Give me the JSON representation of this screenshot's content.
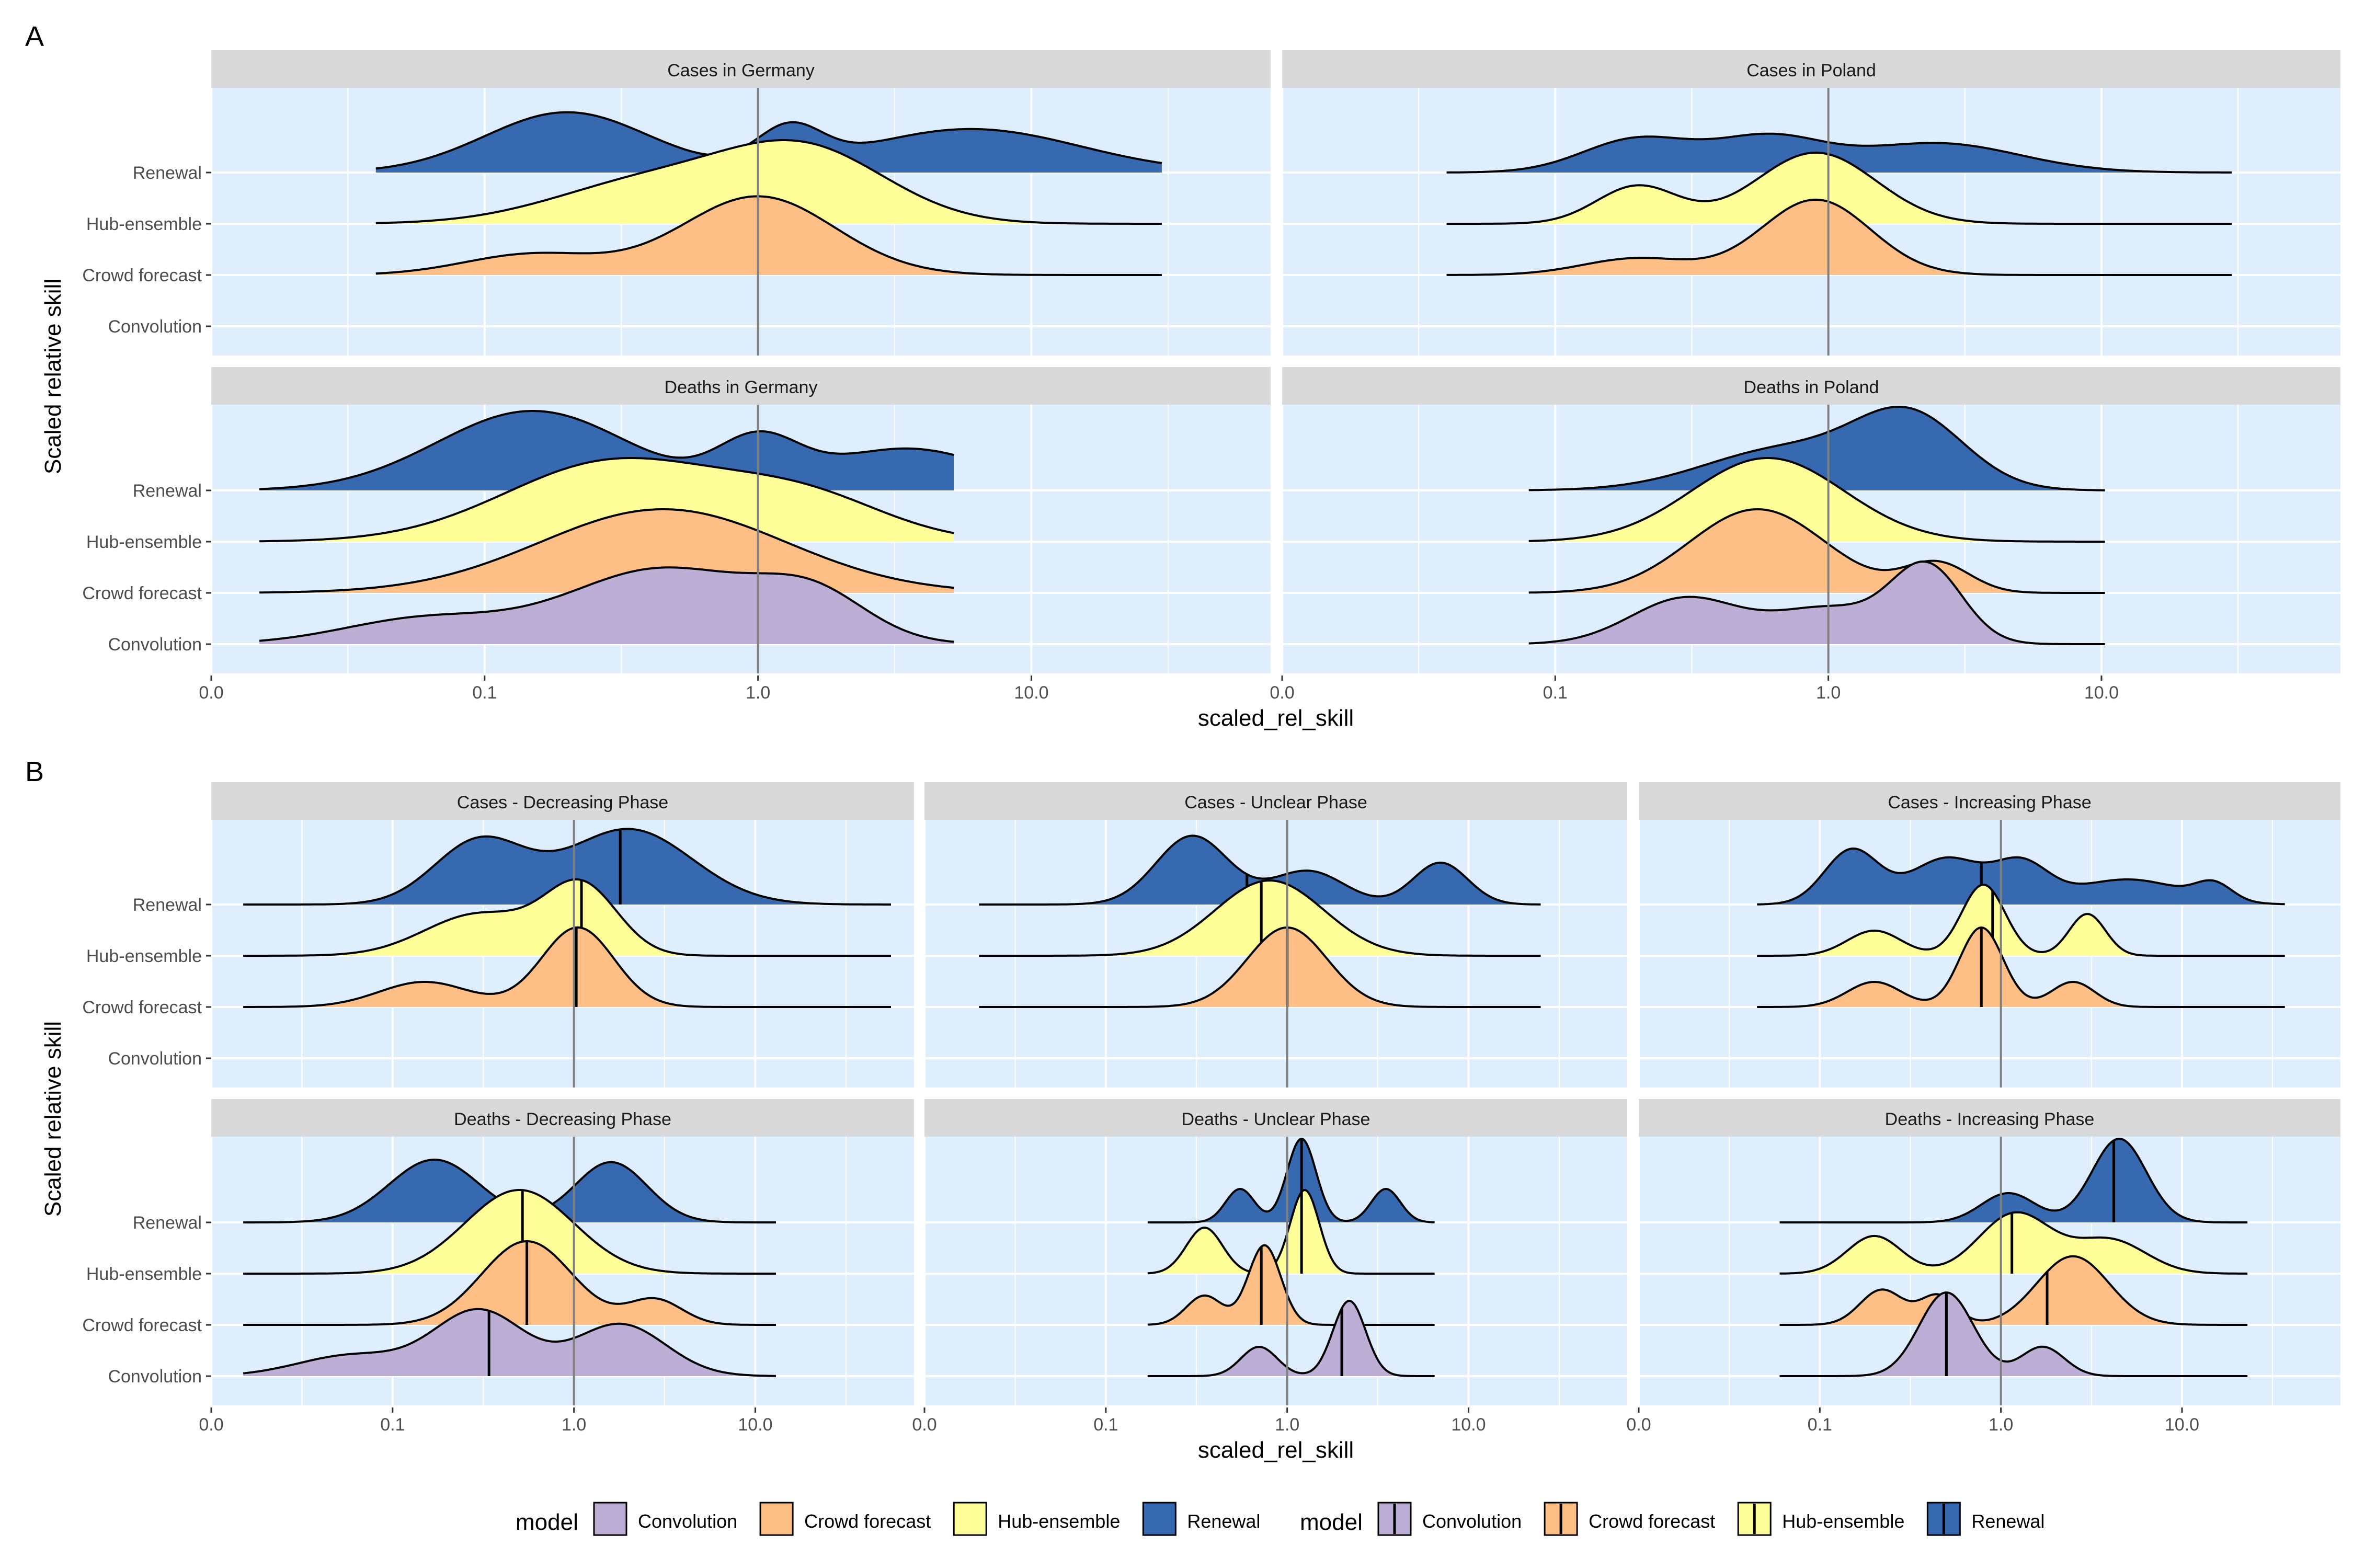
{
  "figure": {
    "legend": {
      "title": "model",
      "entries": [
        {
          "label": "Convolution",
          "color": "#bcaed4"
        },
        {
          "label": "Crowd forecast",
          "color": "#fdbf85"
        },
        {
          "label": "Hub-ensemble",
          "color": "#ffff99"
        },
        {
          "label": "Renewal",
          "color": "#3769b0"
        }
      ]
    }
  },
  "chart_data": [
    {
      "type": "density-ridgeline",
      "tag": "A",
      "ylabel": "Scaled relative skill",
      "xlabel": "scaled_rel_skill",
      "x_scale": "log10",
      "x_ticks": [
        "0.0",
        "0.1",
        "1.0",
        "10.0"
      ],
      "categories": [
        "Renewal",
        "Hub-ensemble",
        "Crowd forecast",
        "Convolution"
      ],
      "reference_line": 1.0,
      "panels": [
        {
          "title": "Cases in Germany",
          "range": [
            0.04,
            30
          ],
          "series": [
            {
              "name": "Renewal",
              "peaks": [
                [
                  0.2,
                  0.72,
                  0.3
                ],
                [
                  1.3,
                  0.45,
                  0.12
                ],
                [
                  6,
                  0.52,
                  0.4
                ]
              ]
            },
            {
              "name": "Hub-ensemble",
              "peaks": [
                [
                  0.4,
                  0.5,
                  0.35
                ],
                [
                  1.5,
                  0.85,
                  0.3
                ]
              ]
            },
            {
              "name": "Crowd forecast",
              "peaks": [
                [
                  0.15,
                  0.25,
                  0.25
                ],
                [
                  1.0,
                  0.94,
                  0.28
                ]
              ]
            }
          ]
        },
        {
          "title": "Cases in Poland",
          "range": [
            0.04,
            30
          ],
          "series": [
            {
              "name": "Renewal",
              "peaks": [
                [
                  0.2,
                  0.4,
                  0.2
                ],
                [
                  0.6,
                  0.4,
                  0.2
                ],
                [
                  2.5,
                  0.35,
                  0.3
                ]
              ]
            },
            {
              "name": "Hub-ensemble",
              "peaks": [
                [
                  0.2,
                  0.45,
                  0.15
                ],
                [
                  0.9,
                  0.85,
                  0.22
                ]
              ]
            },
            {
              "name": "Crowd forecast",
              "peaks": [
                [
                  0.2,
                  0.2,
                  0.2
                ],
                [
                  0.9,
                  0.9,
                  0.2
                ]
              ]
            }
          ]
        },
        {
          "title": "Deaths in Germany",
          "range": [
            0.015,
            5.2
          ],
          "series": [
            {
              "name": "Renewal",
              "peaks": [
                [
                  0.15,
                  0.95,
                  0.35
                ],
                [
                  1.0,
                  0.55,
                  0.15
                ],
                [
                  3.5,
                  0.5,
                  0.3
                ]
              ]
            },
            {
              "name": "Hub-ensemble",
              "peaks": [
                [
                  0.3,
                  1.0,
                  0.4
                ],
                [
                  1.5,
                  0.5,
                  0.3
                ]
              ]
            },
            {
              "name": "Crowd forecast",
              "peaks": [
                [
                  0.45,
                  1.0,
                  0.45
                ]
              ]
            },
            {
              "name": "Convolution",
              "peaks": [
                [
                  0.06,
                  0.3,
                  0.3
                ],
                [
                  0.45,
                  0.9,
                  0.35
                ],
                [
                  1.6,
                  0.5,
                  0.2
                ]
              ]
            }
          ]
        },
        {
          "title": "Deaths in Poland",
          "range": [
            0.08,
            10.3
          ],
          "series": [
            {
              "name": "Renewal",
              "peaks": [
                [
                  0.7,
                  0.6,
                  0.3
                ],
                [
                  2,
                  1.0,
                  0.2
                ]
              ]
            },
            {
              "name": "Hub-ensemble",
              "peaks": [
                [
                  0.6,
                  1.0,
                  0.28
                ]
              ]
            },
            {
              "name": "Crowd forecast",
              "peaks": [
                [
                  0.55,
                  1.0,
                  0.25
                ],
                [
                  2.5,
                  0.35,
                  0.12
                ]
              ]
            },
            {
              "name": "Convolution",
              "peaks": [
                [
                  0.3,
                  0.55,
                  0.2
                ],
                [
                  1.0,
                  0.42,
                  0.2
                ],
                [
                  2.3,
                  0.9,
                  0.13
                ]
              ]
            }
          ]
        }
      ]
    },
    {
      "type": "density-ridgeline",
      "tag": "B",
      "ylabel": "Scaled relative skill",
      "xlabel": "scaled_rel_skill",
      "x_scale": "log10",
      "x_ticks": [
        "0.0",
        "0.1",
        "1.0",
        "10.0"
      ],
      "categories": [
        "Renewal",
        "Hub-ensemble",
        "Crowd forecast",
        "Convolution"
      ],
      "reference_line": 1.0,
      "panels": [
        {
          "title": "Cases - Decreasing Phase",
          "range": [
            0.015,
            56
          ],
          "series": [
            {
              "name": "Renewal",
              "peaks": [
                [
                  0.3,
                  0.75,
                  0.25
                ],
                [
                  2,
                  0.9,
                  0.35
                ]
              ],
              "median": 1.8
            },
            {
              "name": "Hub-ensemble",
              "peaks": [
                [
                  0.3,
                  0.5,
                  0.3
                ],
                [
                  1.1,
                  0.82,
                  0.2
                ]
              ],
              "median": 1.1
            },
            {
              "name": "Crowd forecast",
              "peaks": [
                [
                  0.15,
                  0.3,
                  0.25
                ],
                [
                  1.05,
                  0.95,
                  0.2
                ]
              ],
              "median": 1.03
            }
          ]
        },
        {
          "title": "Cases - Unclear Phase",
          "range": [
            0.02,
            25
          ],
          "series": [
            {
              "name": "Renewal",
              "peaks": [
                [
                  0.3,
                  0.82,
                  0.2
                ],
                [
                  1.3,
                  0.4,
                  0.2
                ],
                [
                  7,
                  0.5,
                  0.15
                ]
              ],
              "median": 0.6
            },
            {
              "name": "Hub-ensemble",
              "peaks": [
                [
                  0.8,
                  0.9,
                  0.3
                ]
              ],
              "median": 0.72
            },
            {
              "name": "Crowd forecast",
              "peaks": [
                [
                  1.0,
                  0.95,
                  0.22
                ]
              ],
              "median": 1.0
            }
          ]
        },
        {
          "title": "Cases - Increasing Phase",
          "range": [
            0.045,
            37
          ],
          "series": [
            {
              "name": "Renewal",
              "peaks": [
                [
                  0.15,
                  0.65,
                  0.15
                ],
                [
                  0.5,
                  0.55,
                  0.2
                ],
                [
                  1.3,
                  0.45,
                  0.15
                ],
                [
                  5,
                  0.3,
                  0.3
                ],
                [
                  15,
                  0.2,
                  0.1
                ]
              ],
              "median": 0.78
            },
            {
              "name": "Hub-ensemble",
              "peaks": [
                [
                  0.2,
                  0.3,
                  0.15
                ],
                [
                  0.8,
                  0.85,
                  0.12
                ],
                [
                  3,
                  0.5,
                  0.1
                ]
              ],
              "median": 0.9
            },
            {
              "name": "Crowd forecast",
              "peaks": [
                [
                  0.2,
                  0.3,
                  0.15
                ],
                [
                  0.78,
                  0.95,
                  0.12
                ],
                [
                  2.5,
                  0.3,
                  0.12
                ]
              ],
              "median": 0.78
            }
          ]
        },
        {
          "title": "Deaths - Decreasing Phase",
          "range": [
            0.015,
            13
          ],
          "series": [
            {
              "name": "Renewal",
              "peaks": [
                [
                  0.17,
                  0.75,
                  0.25
                ],
                [
                  1.6,
                  0.72,
                  0.2
                ]
              ],
              "median": 0.52
            },
            {
              "name": "Hub-ensemble",
              "peaks": [
                [
                  0.5,
                  1.0,
                  0.3
                ]
              ],
              "median": 0.52
            },
            {
              "name": "Crowd forecast",
              "peaks": [
                [
                  0.55,
                  1.0,
                  0.25
                ],
                [
                  2.8,
                  0.3,
                  0.15
                ]
              ],
              "median": 0.55
            },
            {
              "name": "Convolution",
              "peaks": [
                [
                  0.06,
                  0.25,
                  0.3
                ],
                [
                  0.3,
                  0.78,
                  0.25
                ],
                [
                  1.8,
                  0.62,
                  0.25
                ]
              ],
              "median": 0.34
            }
          ]
        },
        {
          "title": "Deaths - Unclear Phase",
          "range": [
            0.17,
            6.5
          ],
          "series": [
            {
              "name": "Renewal",
              "peaks": [
                [
                  0.55,
                  0.4,
                  0.08
                ],
                [
                  1.2,
                  1.0,
                  0.08
                ],
                [
                  3.5,
                  0.4,
                  0.08
                ]
              ],
              "median": 1.2
            },
            {
              "name": "Hub-ensemble",
              "peaks": [
                [
                  0.35,
                  0.55,
                  0.1
                ],
                [
                  1.25,
                  1.0,
                  0.08
                ]
              ],
              "median": 1.2
            },
            {
              "name": "Crowd forecast",
              "peaks": [
                [
                  0.35,
                  0.35,
                  0.1
                ],
                [
                  0.75,
                  0.95,
                  0.09
                ]
              ],
              "median": 0.72
            },
            {
              "name": "Convolution",
              "peaks": [
                [
                  0.7,
                  0.35,
                  0.1
                ],
                [
                  2.2,
                  0.9,
                  0.09
                ]
              ],
              "median": 2.0
            }
          ]
        },
        {
          "title": "Deaths - Increasing Phase",
          "range": [
            0.06,
            23
          ],
          "series": [
            {
              "name": "Renewal",
              "peaks": [
                [
                  1.1,
                  0.35,
                  0.15
                ],
                [
                  4.5,
                  1.0,
                  0.15
                ]
              ],
              "median": 4.2
            },
            {
              "name": "Hub-ensemble",
              "peaks": [
                [
                  0.2,
                  0.45,
                  0.15
                ],
                [
                  1.2,
                  0.72,
                  0.2
                ],
                [
                  4,
                  0.4,
                  0.2
                ]
              ],
              "median": 1.15
            },
            {
              "name": "Crowd forecast",
              "peaks": [
                [
                  0.22,
                  0.42,
                  0.12
                ],
                [
                  0.45,
                  0.35,
                  0.1
                ],
                [
                  2.5,
                  0.82,
                  0.2
                ]
              ],
              "median": 1.8
            },
            {
              "name": "Convolution",
              "peaks": [
                [
                  0.5,
                  1.0,
                  0.15
                ],
                [
                  1.7,
                  0.35,
                  0.12
                ]
              ],
              "median": 0.5
            }
          ]
        }
      ]
    }
  ]
}
